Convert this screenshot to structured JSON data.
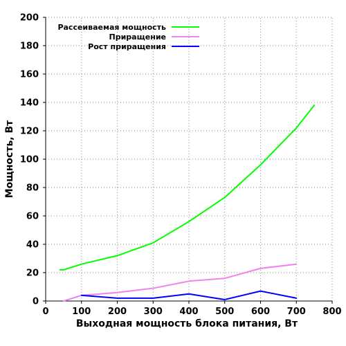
{
  "chart_data": {
    "type": "line",
    "xlabel": "Выходная мощность блока питания, Вт",
    "ylabel": "Мощность, Вт",
    "xlim": [
      0,
      800
    ],
    "ylim": [
      0,
      200
    ],
    "x_ticks": [
      0,
      100,
      200,
      300,
      400,
      500,
      600,
      700,
      800
    ],
    "y_ticks": [
      0,
      20,
      40,
      60,
      80,
      100,
      120,
      140,
      160,
      180,
      200
    ],
    "grid": true,
    "legend_position": "top-left",
    "series": [
      {
        "name": "Рассеиваемая мощность",
        "color": "#00ff00",
        "x": [
          40,
          50,
          100,
          200,
          300,
          400,
          500,
          600,
          700,
          750
        ],
        "values": [
          22,
          22,
          26,
          32,
          41,
          56,
          73,
          96,
          122,
          138
        ]
      },
      {
        "name": "Приращение",
        "color": "#ee82ee",
        "x": [
          50,
          100,
          200,
          300,
          400,
          500,
          600,
          700
        ],
        "values": [
          0,
          4,
          6,
          9,
          14,
          16,
          23,
          26
        ]
      },
      {
        "name": "Рост приращения",
        "color": "#0000ff",
        "x": [
          100,
          200,
          300,
          400,
          500,
          600,
          700
        ],
        "values": [
          4,
          2,
          2,
          5,
          1,
          7,
          2
        ]
      }
    ]
  }
}
